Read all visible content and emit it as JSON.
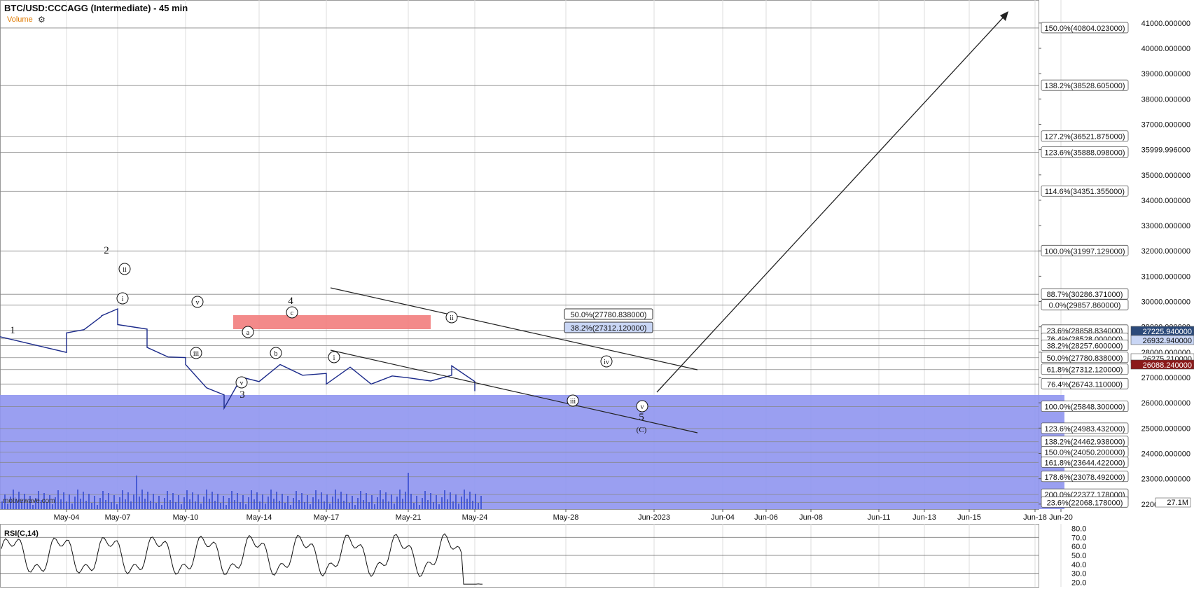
{
  "header": {
    "title": "BTC/USD:CCCAGG (Intermediate) - 45 min",
    "volume_label": "Volume",
    "rsi_label": "RSI(C,14)",
    "watermark": "motivewave.com"
  },
  "colors": {
    "price_line": "#1b2a8a",
    "fib_box": "#f27d7d",
    "support_zone": "#8f95f0",
    "grid": "#dddddd",
    "level_line": "#888888",
    "current_price_badge": "#2c4a7a",
    "down_badge": "#8b1a1a"
  },
  "chart_data": {
    "type": "line",
    "x_axis": {
      "labels": [
        "May-04",
        "May-07",
        "May-10",
        "May-14",
        "May-17",
        "May-21",
        "May-24",
        "May-28",
        "Jun-2023",
        "Jun-04",
        "Jun-06",
        "Jun-08",
        "Jun-11",
        "Jun-13",
        "Jun-15",
        "Jun-18",
        "Jun-20"
      ]
    },
    "y_axis": {
      "ticks": [
        "41000.000000",
        "40000.000000",
        "39000.000000",
        "38000.000000",
        "37000.000000",
        "35999.996000",
        "35000.000000",
        "34000.000000",
        "33000.000000",
        "32000.000000",
        "31000.000000",
        "30000.000000",
        "29000.000000",
        "28000.000000",
        "27000.000000",
        "26000.000000",
        "25000.000000",
        "24000.000000",
        "23000.000000",
        "22000.000000"
      ],
      "range": [
        21800,
        41300
      ]
    },
    "price_series": {
      "name": "BTC/USD",
      "points": [
        [
          "May-03",
          28500
        ],
        [
          "May-04",
          28100
        ],
        [
          "May-04",
          28650
        ],
        [
          "May-05",
          29000
        ],
        [
          "May-06",
          29300
        ],
        [
          "May-06",
          29550
        ],
        [
          "May-07",
          29600
        ],
        [
          "May-07",
          29200
        ],
        [
          "May-08",
          28800
        ],
        [
          "May-08",
          28300
        ],
        [
          "May-09",
          27700
        ],
        [
          "May-10",
          27900
        ],
        [
          "May-10",
          27400
        ],
        [
          "May-11",
          26700
        ],
        [
          "May-12",
          26200
        ],
        [
          "May-12",
          25900
        ],
        [
          "May-13",
          26900
        ],
        [
          "May-14",
          26950
        ],
        [
          "May-15",
          27400
        ],
        [
          "May-16",
          27200
        ],
        [
          "May-17",
          27050
        ],
        [
          "May-17",
          26850
        ],
        [
          "May-18",
          27300
        ],
        [
          "May-19",
          26850
        ],
        [
          "May-20",
          26950
        ],
        [
          "May-21",
          27100
        ],
        [
          "May-22",
          26750
        ],
        [
          "May-23",
          27200
        ],
        [
          "May-23",
          27350
        ],
        [
          "May-24",
          26950
        ],
        [
          "May-24",
          26350
        ]
      ]
    },
    "fib_levels_right": [
      {
        "pct": "150.0%",
        "value": 40804.023
      },
      {
        "pct": "138.2%",
        "value": 38528.605
      },
      {
        "pct": "127.2%",
        "value": 36521.875
      },
      {
        "pct": "123.6%",
        "value": 35888.098
      },
      {
        "pct": "114.6%",
        "value": 34351.355
      },
      {
        "pct": "100.0%",
        "value": 31997.129
      },
      {
        "pct": "88.7%",
        "value": 30286.371
      },
      {
        "pct": "0.0%",
        "value": 29857.86
      },
      {
        "pct": "23.6%",
        "value": 28858.834
      },
      {
        "pct": "76.4%",
        "value": 28528.0
      },
      {
        "pct": "38.2%",
        "value": 28257.6
      },
      {
        "pct": "50.0%",
        "value": 27780.838
      },
      {
        "pct": "61.8%",
        "value": 27312.12
      },
      {
        "pct": "76.4%",
        "value": 26743.11
      },
      {
        "pct": "100.0%",
        "value": 25848.3
      },
      {
        "pct": "123.6%",
        "value": 24983.432
      },
      {
        "pct": "138.2%",
        "value": 24462.938
      },
      {
        "pct": "150.0%",
        "value": 24050.2
      },
      {
        "pct": "161.8%",
        "value": 23644.422
      },
      {
        "pct": "178.6%",
        "value": 23078.492
      },
      {
        "pct": "200.0%",
        "value": 22377.178
      },
      {
        "pct": "23.6%",
        "value": 22068.178
      }
    ],
    "fib_levels_mid": [
      {
        "pct": "50.0%",
        "value": 27780.838
      },
      {
        "pct": "38.2%",
        "value": 27312.12
      }
    ],
    "price_badges": [
      {
        "label": "27225.940000",
        "kind": "current"
      },
      {
        "label": "26932.940000",
        "kind": "light"
      },
      {
        "label": "26275.210000",
        "kind": "plain"
      },
      {
        "label": "26088.240000",
        "kind": "down"
      }
    ],
    "volume_badge": "27.1M",
    "rsi": {
      "ticks": [
        "80.0",
        "70.0",
        "60.0",
        "50.0",
        "40.0",
        "30.0",
        "20.0"
      ],
      "range": [
        15,
        85
      ]
    },
    "wave_labels": [
      "1",
      "2",
      "3",
      "4",
      "5",
      "i",
      "ii",
      "iii",
      "iv",
      "v",
      "a",
      "b",
      "c",
      "(C)"
    ]
  }
}
